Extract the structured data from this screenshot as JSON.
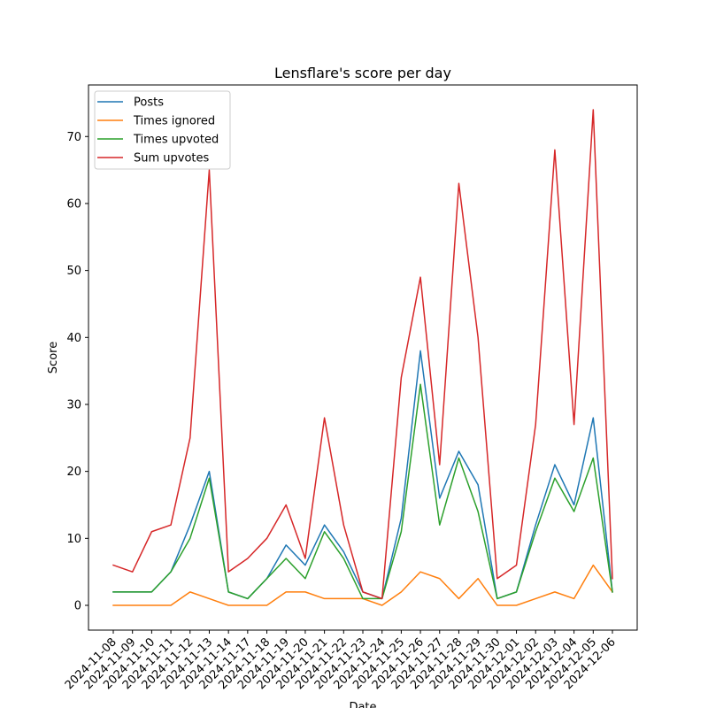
{
  "chart_data": {
    "type": "line",
    "title": "Lensflare's score per day",
    "xlabel": "Date",
    "ylabel": "Score",
    "ylim": [
      -3.7,
      77.7
    ],
    "yticks": [
      0,
      10,
      20,
      30,
      40,
      50,
      60,
      70
    ],
    "grid": false,
    "legend": "top-left",
    "categories": [
      "2024-11-08",
      "2024-11-09",
      "2024-11-10",
      "2024-11-11",
      "2024-11-12",
      "2024-11-13",
      "2024-11-14",
      "2024-11-17",
      "2024-11-18",
      "2024-11-19",
      "2024-11-20",
      "2024-11-21",
      "2024-11-22",
      "2024-11-23",
      "2024-11-24",
      "2024-11-25",
      "2024-11-26",
      "2024-11-27",
      "2024-11-28",
      "2024-11-29",
      "2024-11-30",
      "2024-12-01",
      "2024-12-02",
      "2024-12-03",
      "2024-12-04",
      "2024-12-05",
      "2024-12-06"
    ],
    "series": [
      {
        "name": "Posts",
        "color": "#1f77b4",
        "values": [
          2,
          2,
          2,
          5,
          12,
          20,
          2,
          1,
          4,
          9,
          6,
          12,
          8,
          2,
          1,
          13,
          38,
          16,
          23,
          18,
          1,
          2,
          12,
          21,
          15,
          28,
          2
        ]
      },
      {
        "name": "Times ignored",
        "color": "#ff7f0e",
        "values": [
          0,
          0,
          0,
          0,
          2,
          1,
          0,
          0,
          0,
          2,
          2,
          1,
          1,
          1,
          0,
          2,
          5,
          4,
          1,
          4,
          0,
          0,
          1,
          2,
          1,
          6,
          2
        ]
      },
      {
        "name": "Times upvoted",
        "color": "#2ca02c",
        "values": [
          2,
          2,
          2,
          5,
          10,
          19,
          2,
          1,
          4,
          7,
          4,
          11,
          7,
          1,
          1,
          11,
          33,
          12,
          22,
          14,
          1,
          2,
          11,
          19,
          14,
          22,
          2
        ]
      },
      {
        "name": "Sum upvotes",
        "color": "#d62728",
        "values": [
          6,
          5,
          11,
          12,
          25,
          65,
          5,
          7,
          10,
          15,
          7,
          28,
          12,
          2,
          1,
          34,
          49,
          21,
          63,
          40,
          4,
          6,
          27,
          68,
          27,
          74,
          4
        ]
      }
    ]
  }
}
